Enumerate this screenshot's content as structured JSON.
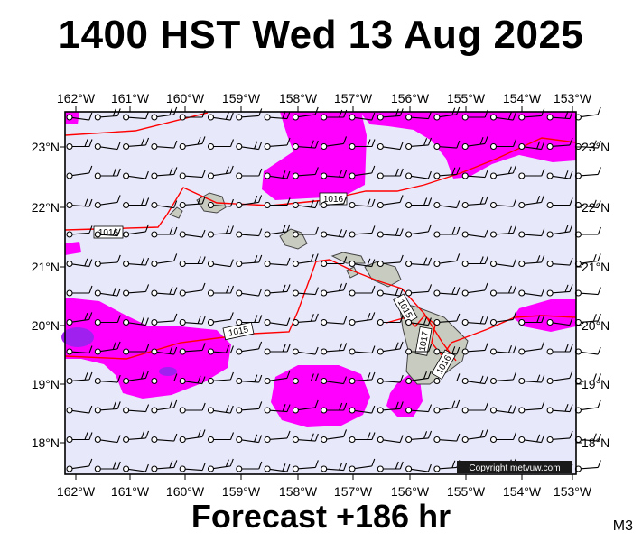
{
  "header": {
    "title": "1400 HST Wed 13 Aug 2025"
  },
  "footer": {
    "forecast": "Forecast +186 hr",
    "model": "M3"
  },
  "map": {
    "lon_labels": [
      "162°W",
      "161°W",
      "160°W",
      "159°W",
      "158°W",
      "157°W",
      "156°W",
      "155°W",
      "154°W",
      "153°W"
    ],
    "lat_labels": [
      "23°N",
      "22°N",
      "21°N",
      "20°N",
      "19°N",
      "18°N"
    ],
    "isobar_labels": [
      "1016",
      "1016",
      "1015",
      "1015",
      "1017",
      "1016"
    ],
    "copyright": "Copyright metvuw.com",
    "colors": {
      "ocean": "#e8e8fb",
      "precip": "#ff00ff",
      "precip_heavy": "#a020f0",
      "isobar": "#ff0000",
      "land": "#c8ccc0"
    }
  }
}
